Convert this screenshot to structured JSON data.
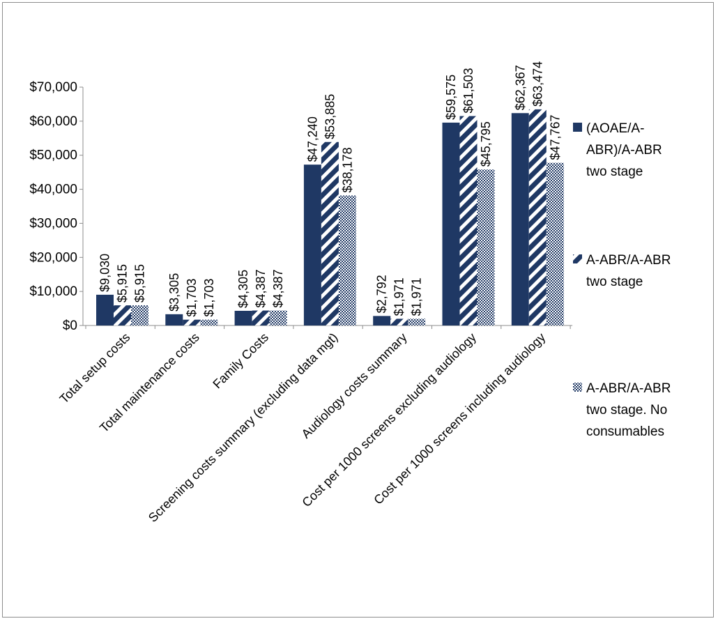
{
  "chart_data": {
    "type": "bar",
    "title": "",
    "xlabel": "",
    "ylabel": "",
    "ylim": [
      0,
      70000
    ],
    "y_ticks": [
      "$0",
      "$10,000",
      "$20,000",
      "$30,000",
      "$40,000",
      "$50,000",
      "$60,000",
      "$70,000"
    ],
    "grid": false,
    "legend_position": "right",
    "categories": [
      "Total setup costs",
      "Total maintenance costs",
      "Family Costs",
      "Screening costs summary (excluding data mgt)",
      "Audiology costs summary",
      "Cost per 1000 screens excluding audiology",
      "Cost per 1000 screens including audiology"
    ],
    "series": [
      {
        "name_lines": [
          "(AOAE/A-",
          "ABR)/A-ABR",
          "two stage"
        ],
        "fill": "solid",
        "color": "#1f3864",
        "values": [
          9030,
          3305,
          4305,
          47240,
          2792,
          59575,
          62367
        ],
        "labels": [
          "$9,030",
          "$3,305",
          "$4,305",
          "$47,240",
          "$2,792",
          "$59,575",
          "$62,367"
        ]
      },
      {
        "name_lines": [
          "A-ABR/A-ABR",
          "two stage"
        ],
        "fill": "diagonal-stripes",
        "color": "#1f3864",
        "values": [
          5915,
          1703,
          4387,
          53885,
          1971,
          61503,
          63474
        ],
        "labels": [
          "$5,915",
          "$1,703",
          "$4,387",
          "$53,885",
          "$1,971",
          "$61,503",
          "$63,474"
        ]
      },
      {
        "name_lines": [
          "A-ABR/A-ABR",
          "two stage. No",
          "consumables"
        ],
        "fill": "checker",
        "color": "#1f3864",
        "values": [
          5915,
          1703,
          4387,
          38178,
          1971,
          45795,
          47767
        ],
        "labels": [
          "$5,915",
          "$1,703",
          "$4,387",
          "$38,178",
          "$1,971",
          "$45,795",
          "$47,767"
        ]
      }
    ]
  }
}
